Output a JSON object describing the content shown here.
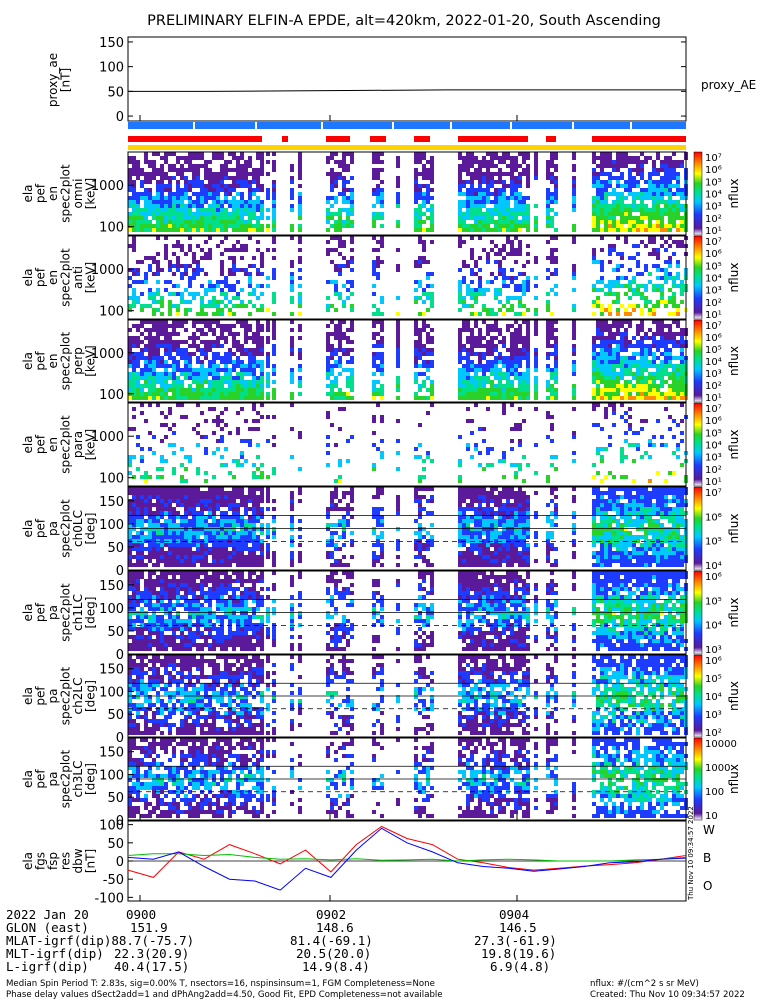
{
  "title": "PRELIMINARY ELFIN-A EPDE, alt=420km, 2022-01-20, South Ascending",
  "colors": {
    "red": "#ff0000",
    "blue": "#1e78ff",
    "yellow": "#ffd200",
    "w_line": "#ff0000",
    "b_line": "#00c000",
    "o_line": "#0000ff"
  },
  "chart_data": [
    {
      "type": "line",
      "panel": "proxy_ae",
      "ylabel": [
        "proxy_ae",
        "[nT]"
      ],
      "ylim": [
        -10,
        160
      ],
      "yticks": [
        "0",
        "50",
        "100",
        "150"
      ],
      "series": [
        {
          "name": "proxy_AE",
          "values": [
            50,
            50,
            51,
            52,
            53,
            53,
            53,
            53
          ]
        }
      ]
    },
    {
      "type": "heatmap",
      "panel": "spec-1",
      "ylabel": [
        "ela",
        "pef",
        "en",
        "spec2plot",
        "omni",
        "[keV]"
      ],
      "yticks": [
        "100",
        "1000"
      ],
      "colorbar": {
        "label": "nflux",
        "ticks": [
          "10⁷",
          "10⁶",
          "10⁵",
          "10⁴",
          "10³",
          "10²",
          "10¹"
        ]
      }
    },
    {
      "type": "heatmap",
      "panel": "spec-2",
      "ylabel": [
        "ela",
        "pef",
        "en",
        "spec2plot",
        "anti",
        "[keV]"
      ],
      "yticks": [
        "100",
        "1000"
      ],
      "colorbar": {
        "label": "nflux",
        "ticks": [
          "10⁷",
          "10⁶",
          "10⁵",
          "10⁴",
          "10³",
          "10²",
          "10¹"
        ]
      }
    },
    {
      "type": "heatmap",
      "panel": "spec-3",
      "ylabel": [
        "ela",
        "pef",
        "en",
        "spec2plot",
        "perp",
        "[keV]"
      ],
      "yticks": [
        "100",
        "1000"
      ],
      "colorbar": {
        "label": "nflux",
        "ticks": [
          "10⁷",
          "10⁶",
          "10⁵",
          "10⁴",
          "10³",
          "10²",
          "10¹"
        ]
      }
    },
    {
      "type": "heatmap",
      "panel": "spec-4",
      "ylabel": [
        "ela",
        "pef",
        "en",
        "spec2plot",
        "para",
        "[keV]"
      ],
      "yticks": [
        "100",
        "1000"
      ],
      "colorbar": {
        "label": "nflux",
        "ticks": [
          "10⁷",
          "10⁶",
          "10⁵",
          "10⁴",
          "10³",
          "10²",
          "10¹"
        ]
      }
    },
    {
      "type": "heatmap",
      "panel": "pa-ch0",
      "ylabel": [
        "ela",
        "pef",
        "pa",
        "spec2plot",
        "ch0LC",
        "[deg]"
      ],
      "yticks": [
        "0",
        "50",
        "100",
        "150"
      ],
      "colorbar": {
        "label": "nflux",
        "ticks": [
          "10⁷",
          "10⁶",
          "10⁵",
          "10⁴"
        ]
      }
    },
    {
      "type": "heatmap",
      "panel": "pa-ch1",
      "ylabel": [
        "ela",
        "pef",
        "pa",
        "spec2plot",
        "ch1LC",
        "[deg]"
      ],
      "yticks": [
        "0",
        "50",
        "100",
        "150"
      ],
      "colorbar": {
        "label": "nflux",
        "ticks": [
          "10⁶",
          "10⁵",
          "10⁴",
          "10³"
        ]
      }
    },
    {
      "type": "heatmap",
      "panel": "pa-ch2",
      "ylabel": [
        "ela",
        "pef",
        "pa",
        "spec2plot",
        "ch2LC",
        "[deg]"
      ],
      "yticks": [
        "0",
        "50",
        "100",
        "150"
      ],
      "colorbar": {
        "label": "nflux",
        "ticks": [
          "10⁶",
          "10⁵",
          "10⁴",
          "10³",
          "10²"
        ]
      }
    },
    {
      "type": "heatmap",
      "panel": "pa-ch3",
      "ylabel": [
        "ela",
        "pef",
        "pa",
        "spec2plot",
        "ch3LC",
        "[deg]"
      ],
      "yticks": [
        "0",
        "50",
        "100",
        "150"
      ],
      "colorbar": {
        "label": "nflux",
        "ticks": [
          "10000",
          "1000",
          "100",
          "10"
        ]
      }
    },
    {
      "type": "line",
      "panel": "dbw",
      "ylabel": [
        "ela",
        "fgs",
        "fsp",
        "res",
        "dbw",
        "[nT]"
      ],
      "ylim": [
        -110,
        110
      ],
      "yticks": [
        "-100",
        "-50",
        "0",
        "50",
        "100"
      ],
      "legend": [
        "W",
        "B",
        "O"
      ],
      "series": [
        {
          "name": "W",
          "values": [
            -25,
            -45,
            25,
            5,
            45,
            20,
            -8,
            30,
            -30,
            45,
            95,
            62,
            45,
            5,
            -5,
            -18,
            -25,
            -20,
            -14,
            -10,
            -5,
            5,
            15
          ]
        },
        {
          "name": "B",
          "values": [
            15,
            20,
            20,
            15,
            18,
            10,
            5,
            6,
            3,
            6,
            2,
            3,
            5,
            0,
            3,
            5,
            3,
            0,
            0,
            0,
            3,
            5,
            10
          ]
        },
        {
          "name": "O",
          "values": [
            10,
            5,
            25,
            -15,
            -50,
            -55,
            -80,
            -20,
            -45,
            30,
            90,
            50,
            25,
            -5,
            -15,
            -20,
            -28,
            -22,
            -15,
            -5,
            -2,
            5,
            8
          ]
        }
      ]
    }
  ],
  "xticks": [
    "0900",
    "0902",
    "0904"
  ],
  "footer": {
    "rows": [
      {
        "label": "2022 Jan 20",
        "v1": "0900",
        "v2": "0902",
        "v3": "0904"
      },
      {
        "label": "GLON (east)",
        "v1": "151.9",
        "v2": "148.6",
        "v3": "146.5"
      },
      {
        "label": "MLAT-igrf(dip)88.7(-75.7)",
        "v1": "",
        "v2": "81.4(-69.1)",
        "v3": "27.3(-61.9)"
      },
      {
        "label": "MLT-igrf(dip)",
        "v1": "22.3(20.9)",
        "v2": "20.5(20.0)",
        "v3": "19.8(19.6)"
      },
      {
        "label": "L-igrf(dip)",
        "v1": "40.4(17.5)",
        "v2": "14.9(8.4)",
        "v3": "6.9(4.8)"
      }
    ],
    "note1": "Median Spin Period T: 2.83s, sig=0.00% T, nsectors=16, nspinsinsum=1, FGM Completeness=None",
    "note2": "Phase delay values dSect2add=1 and dPhAng2add=4.50, Good Fit, EPD Completeness=not available",
    "units": "nflux: #/(cm^2 s sr MeV)",
    "created": "Created: Thu Nov 10 09:34:57 2022",
    "vertical_stamp": "Thu Nov 10 09:34:57 2022"
  }
}
